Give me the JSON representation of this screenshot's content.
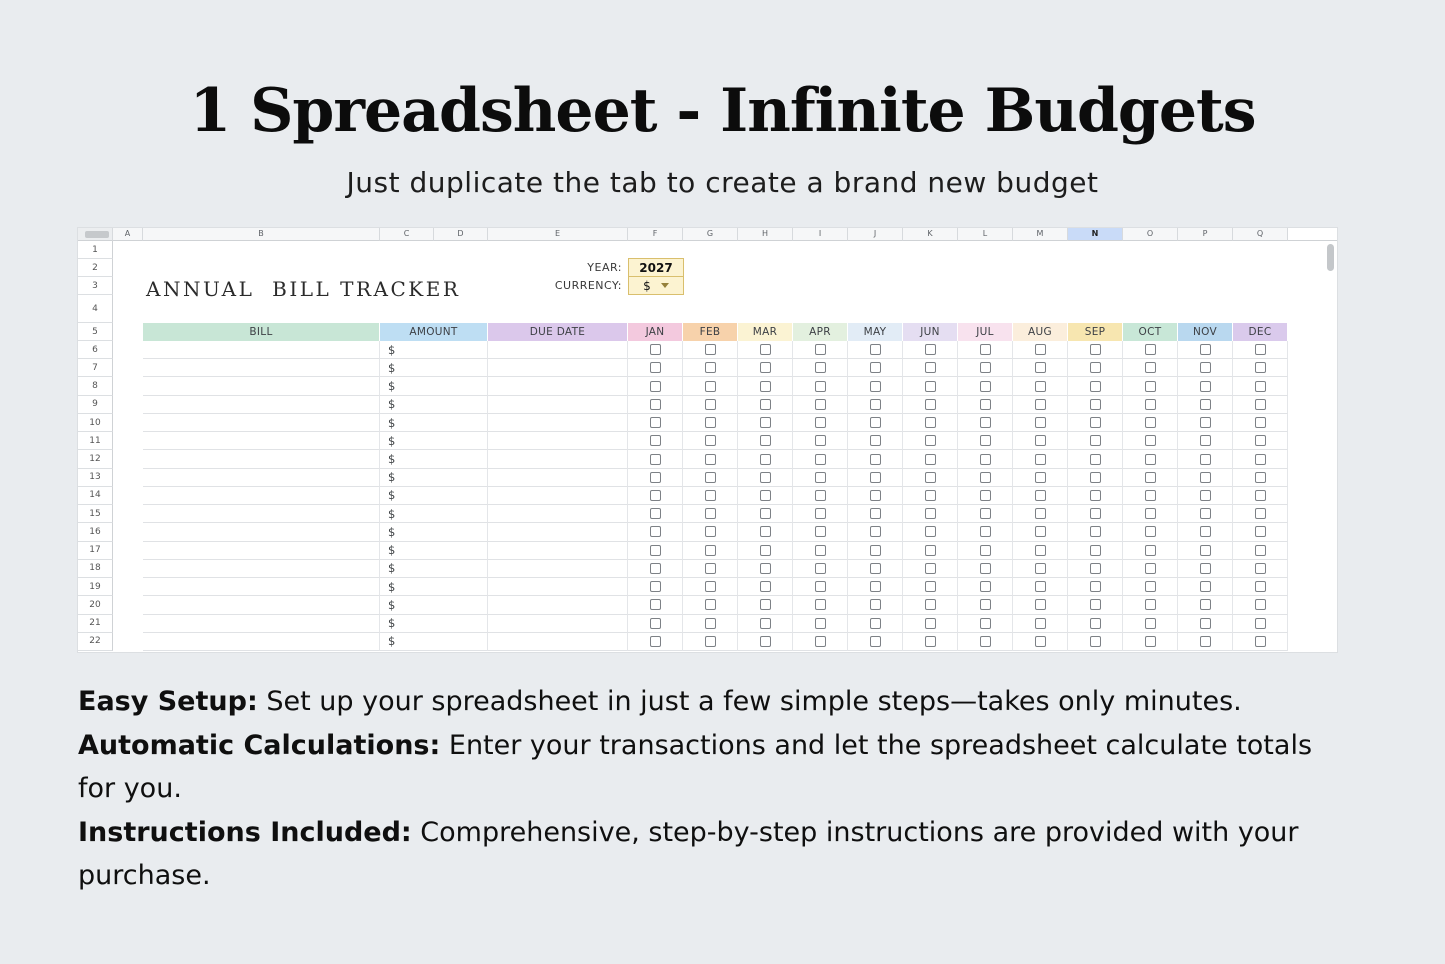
{
  "page": {
    "background": "#e9ecef",
    "title": "1 Spreadsheet - Infinite Budgets",
    "subtitle": "Just duplicate the tab to create a brand new budget"
  },
  "features": [
    {
      "label": "Easy Setup:",
      "text": " Set up your spreadsheet in just a few simple steps—takes only minutes."
    },
    {
      "label": "Automatic Calculations:",
      "text": " Enter your transactions and let the spreadsheet calculate totals\nfor you."
    },
    {
      "label": "Instructions Included:",
      "text": " Comprehensive, step-by-step instructions are provided with your\npurchase."
    }
  ],
  "sheet": {
    "title": "ANNUAL  BILL TRACKER",
    "year": {
      "label": "YEAR:",
      "value": "2027"
    },
    "currency": {
      "label": "CURRENCY:",
      "value": "$"
    },
    "column_letters": [
      "A",
      "B",
      "C",
      "D",
      "E",
      "F",
      "G",
      "H",
      "I",
      "J",
      "K",
      "L",
      "M",
      "N",
      "O",
      "P",
      "Q"
    ],
    "highlighted_letter": "N",
    "highlight_color": "#c9dbf8",
    "row_numbers": [
      "1",
      "2",
      "3",
      "4",
      "5",
      "6",
      "7",
      "8",
      "9",
      "10",
      "11",
      "12",
      "13",
      "14",
      "15",
      "16",
      "17",
      "18",
      "19",
      "20",
      "21",
      "22"
    ],
    "columns": [
      {
        "label": "BILL",
        "color": "#c8e6d6"
      },
      {
        "label": "AMOUNT",
        "color": "#bedef3"
      },
      {
        "label": "DUE DATE",
        "color": "#dbc8eb"
      }
    ],
    "months": [
      {
        "label": "JAN",
        "color": "#f3c9de"
      },
      {
        "label": "FEB",
        "color": "#f7d2ab"
      },
      {
        "label": "MAR",
        "color": "#fbf3d3"
      },
      {
        "label": "APR",
        "color": "#e3f0df"
      },
      {
        "label": "MAY",
        "color": "#e2ecf6"
      },
      {
        "label": "JUN",
        "color": "#e5def2"
      },
      {
        "label": "JUL",
        "color": "#f8e2ee"
      },
      {
        "label": "AUG",
        "color": "#fbeedc"
      },
      {
        "label": "SEP",
        "color": "#f7e6b0"
      },
      {
        "label": "OCT",
        "color": "#c8e7d7"
      },
      {
        "label": "NOV",
        "color": "#b9d8ef"
      },
      {
        "label": "DEC",
        "color": "#dacaec"
      }
    ],
    "amount_symbol": "$",
    "data_row_count": 17,
    "year_cell_bg": "#fcf3d1",
    "year_cell_border": "#d9bf6d"
  }
}
